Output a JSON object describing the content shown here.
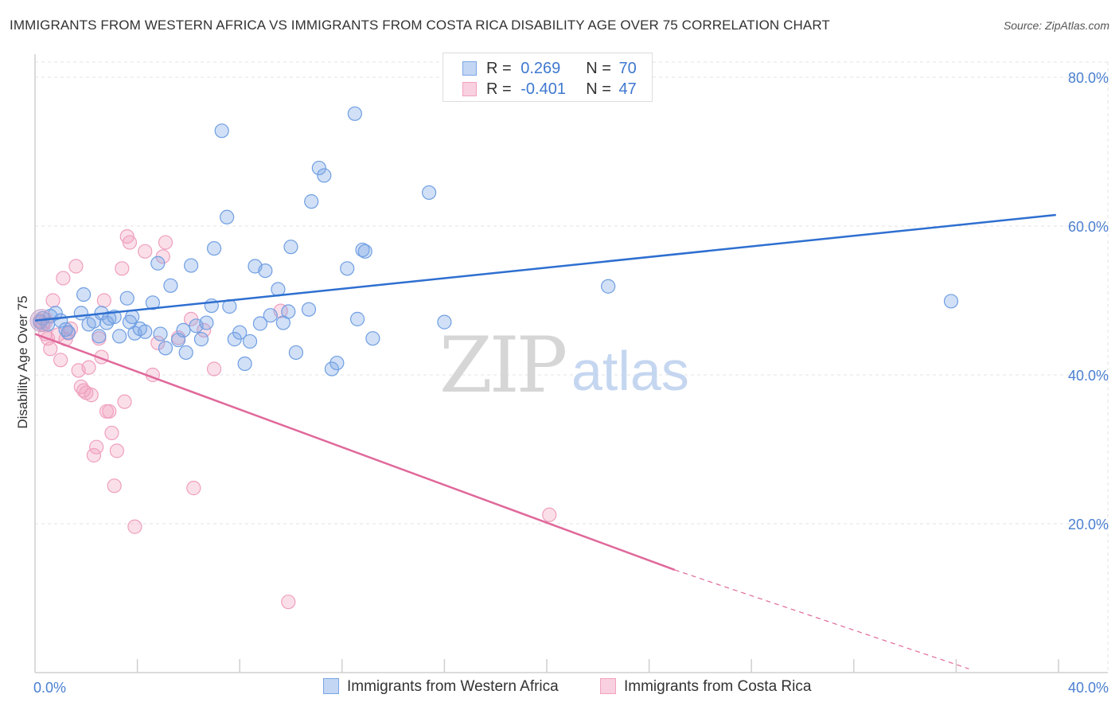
{
  "title": "IMMIGRANTS FROM WESTERN AFRICA VS IMMIGRANTS FROM COSTA RICA DISABILITY AGE OVER 75 CORRELATION CHART",
  "source": "Source: ZipAtlas.com",
  "watermark": {
    "zip": "ZIP",
    "atlas": "atlas"
  },
  "legend": {
    "rows": [
      {
        "r_label": "R =",
        "r_value": "0.269",
        "n_label": "N =",
        "n_value": "70",
        "color": "#7aa6e6"
      },
      {
        "r_label": "R =",
        "r_value": "-0.401",
        "n_label": "N =",
        "n_value": "47",
        "color": "#f2a2bf"
      }
    ]
  },
  "bottom_legend": [
    {
      "label": "Immigrants from Western Africa",
      "color": "#7aa6e6"
    },
    {
      "label": "Immigrants from Costa Rica",
      "color": "#f2a2bf"
    }
  ],
  "chart_data": {
    "type": "scatter",
    "title": "IMMIGRANTS FROM WESTERN AFRICA VS IMMIGRANTS FROM COSTA RICA DISABILITY AGE OVER 75 CORRELATION CHART",
    "xlabel": "",
    "ylabel": "Disability Age Over 75",
    "xlim": [
      0,
      40
    ],
    "ylim": [
      0,
      80
    ],
    "x_tick_labels": [
      "0.0%",
      "40.0%"
    ],
    "y_ticks": [
      20,
      40,
      60,
      80
    ],
    "y_tick_labels": [
      "20.0%",
      "40.0%",
      "60.0%",
      "80.0%"
    ],
    "grid": true,
    "series": [
      {
        "name": "Immigrants from Western Africa",
        "color": "#7aa6e6",
        "line_color": "#2e6fd0",
        "trend": {
          "x0": 0,
          "y0": 47.3,
          "x1": 39.9,
          "y1": 61.5
        },
        "points": [
          [
            0.2,
            47.1
          ],
          [
            0.3,
            47.6
          ],
          [
            0.5,
            46.8
          ],
          [
            0.6,
            47.9
          ],
          [
            0.8,
            48.3
          ],
          [
            1.0,
            47.3
          ],
          [
            1.2,
            46.1
          ],
          [
            1.3,
            45.7
          ],
          [
            1.9,
            50.8
          ],
          [
            1.8,
            48.3
          ],
          [
            2.1,
            46.8
          ],
          [
            2.3,
            47.2
          ],
          [
            2.5,
            45.2
          ],
          [
            2.6,
            48.3
          ],
          [
            2.8,
            47.0
          ],
          [
            2.9,
            47.6
          ],
          [
            3.1,
            47.8
          ],
          [
            3.3,
            45.2
          ],
          [
            3.6,
            50.3
          ],
          [
            3.7,
            47.1
          ],
          [
            3.8,
            47.8
          ],
          [
            3.9,
            45.6
          ],
          [
            4.1,
            46.2
          ],
          [
            4.3,
            45.8
          ],
          [
            4.6,
            49.7
          ],
          [
            4.8,
            55.0
          ],
          [
            4.9,
            45.5
          ],
          [
            5.1,
            43.6
          ],
          [
            5.3,
            52.0
          ],
          [
            5.6,
            44.7
          ],
          [
            5.8,
            46.0
          ],
          [
            5.9,
            43.0
          ],
          [
            6.1,
            54.7
          ],
          [
            6.3,
            46.6
          ],
          [
            6.5,
            44.8
          ],
          [
            6.7,
            47.0
          ],
          [
            6.9,
            49.3
          ],
          [
            7.0,
            57.0
          ],
          [
            7.3,
            72.8
          ],
          [
            7.5,
            61.2
          ],
          [
            7.6,
            49.2
          ],
          [
            7.8,
            44.8
          ],
          [
            8.0,
            45.7
          ],
          [
            8.2,
            41.5
          ],
          [
            8.4,
            44.5
          ],
          [
            8.6,
            54.6
          ],
          [
            8.8,
            46.9
          ],
          [
            9.0,
            54.0
          ],
          [
            9.2,
            48.0
          ],
          [
            9.5,
            51.5
          ],
          [
            9.7,
            47.0
          ],
          [
            9.9,
            48.5
          ],
          [
            10.0,
            57.2
          ],
          [
            10.2,
            43.0
          ],
          [
            10.7,
            48.8
          ],
          [
            10.8,
            63.3
          ],
          [
            11.1,
            67.8
          ],
          [
            11.3,
            66.8
          ],
          [
            11.6,
            40.8
          ],
          [
            11.8,
            41.6
          ],
          [
            12.2,
            54.3
          ],
          [
            12.5,
            75.1
          ],
          [
            12.6,
            47.5
          ],
          [
            12.8,
            56.8
          ],
          [
            12.9,
            56.6
          ],
          [
            13.2,
            44.9
          ],
          [
            15.4,
            64.5
          ],
          [
            16.0,
            47.1
          ],
          [
            22.4,
            51.9
          ],
          [
            35.8,
            49.9
          ]
        ]
      },
      {
        "name": "Immigrants from Costa Rica",
        "color": "#f2a2bf",
        "line_color": "#e0689a",
        "trend": {
          "x0": 0,
          "y0": 45.5,
          "x1": 25.0,
          "y1": 13.8
        },
        "trend_dashed_to": {
          "x": 36.5,
          "y": 0.5
        },
        "points": [
          [
            0.2,
            47.3
          ],
          [
            0.3,
            46.8
          ],
          [
            0.4,
            45.5
          ],
          [
            0.5,
            44.9
          ],
          [
            0.6,
            43.5
          ],
          [
            0.7,
            50.0
          ],
          [
            0.9,
            45.4
          ],
          [
            1.0,
            42.0
          ],
          [
            1.1,
            53.0
          ],
          [
            1.2,
            44.8
          ],
          [
            1.3,
            45.6
          ],
          [
            1.4,
            46.2
          ],
          [
            1.6,
            54.6
          ],
          [
            1.7,
            40.6
          ],
          [
            1.8,
            38.4
          ],
          [
            1.9,
            37.9
          ],
          [
            2.0,
            37.6
          ],
          [
            2.1,
            41.0
          ],
          [
            2.2,
            37.3
          ],
          [
            2.3,
            29.2
          ],
          [
            2.4,
            30.3
          ],
          [
            2.5,
            44.9
          ],
          [
            2.6,
            42.4
          ],
          [
            2.7,
            50.0
          ],
          [
            2.8,
            35.1
          ],
          [
            2.9,
            35.1
          ],
          [
            3.0,
            32.2
          ],
          [
            3.1,
            25.1
          ],
          [
            3.2,
            29.8
          ],
          [
            3.4,
            54.3
          ],
          [
            3.5,
            36.4
          ],
          [
            3.6,
            58.6
          ],
          [
            3.7,
            57.8
          ],
          [
            3.9,
            19.6
          ],
          [
            4.3,
            56.6
          ],
          [
            4.6,
            40.0
          ],
          [
            4.8,
            44.3
          ],
          [
            5.0,
            55.9
          ],
          [
            5.1,
            57.8
          ],
          [
            5.6,
            45.0
          ],
          [
            6.1,
            47.5
          ],
          [
            6.2,
            24.8
          ],
          [
            6.6,
            46.0
          ],
          [
            7.0,
            40.8
          ],
          [
            9.6,
            48.6
          ],
          [
            9.9,
            9.5
          ],
          [
            20.1,
            21.2
          ]
        ]
      }
    ]
  }
}
